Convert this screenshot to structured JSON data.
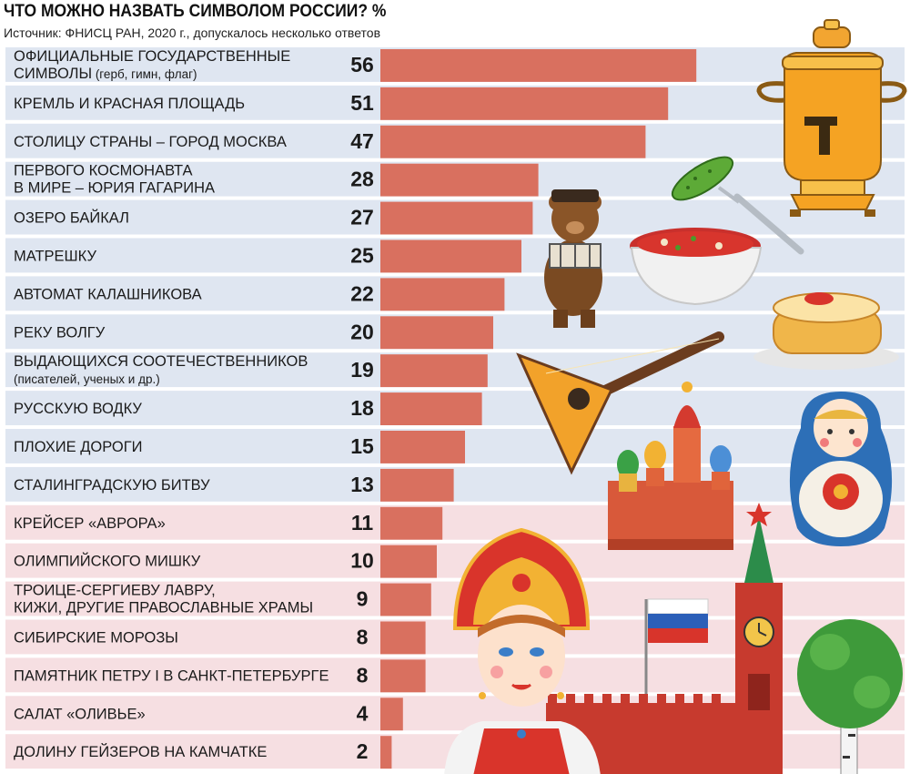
{
  "title": "ЧТО МОЖНО НАЗВАТЬ СИМВОЛОМ РОССИИ? %",
  "subtitle": "Источник: ФНИСЦ РАН, 2020 г., допускалось несколько ответов",
  "chart_data": {
    "type": "bar",
    "orientation": "horizontal",
    "title": "ЧТО МОЖНО НАЗВАТЬ СИМВОЛОМ РОССИИ? %",
    "subtitle": "Источник: ФНИСЦ РАН, 2020 г., допускалось несколько ответов",
    "xlim": [
      0,
      100
    ],
    "grid": false,
    "legend": "none",
    "bar_color": "#d9705f",
    "band_colors": [
      "#dfe6f1",
      "#f6dfe2"
    ],
    "categories": [
      {
        "lines": [
          {
            "text": "ОФИЦИАЛЬНЫЕ ГОСУДАРСТВЕННЫЕ"
          },
          {
            "text": "СИМВОЛЫ",
            "small": " (герб, гимн, флаг)"
          }
        ]
      },
      {
        "lines": [
          {
            "text": "КРЕМЛЬ И КРАСНАЯ ПЛОЩАДЬ"
          }
        ]
      },
      {
        "lines": [
          {
            "text": "СТОЛИЦУ СТРАНЫ – ГОРОД МОСКВА"
          }
        ]
      },
      {
        "lines": [
          {
            "text": "ПЕРВОГО КОСМОНАВТА"
          },
          {
            "text": "В МИРЕ – ЮРИЯ ГАГАРИНА"
          }
        ]
      },
      {
        "lines": [
          {
            "text": "ОЗЕРО БАЙКАЛ"
          }
        ]
      },
      {
        "lines": [
          {
            "text": "МАТРЕШКУ"
          }
        ]
      },
      {
        "lines": [
          {
            "text": "АВТОМАТ КАЛАШНИКОВА"
          }
        ]
      },
      {
        "lines": [
          {
            "text": "РЕКУ ВОЛГУ"
          }
        ]
      },
      {
        "lines": [
          {
            "text": "ВЫДАЮЩИХСЯ СООТЕЧЕСТВЕННИКОВ"
          },
          {
            "text": "",
            "small": "(писателей, ученых и др.)"
          }
        ]
      },
      {
        "lines": [
          {
            "text": "РУССКУЮ ВОДКУ"
          }
        ]
      },
      {
        "lines": [
          {
            "text": "ПЛОХИЕ ДОРОГИ"
          }
        ]
      },
      {
        "lines": [
          {
            "text": "СТАЛИНГРАДСКУЮ БИТВУ"
          }
        ]
      },
      {
        "lines": [
          {
            "text": "КРЕЙСЕР «АВРОРА»"
          }
        ]
      },
      {
        "lines": [
          {
            "text": "ОЛИМПИЙСКОГО МИШКУ"
          }
        ]
      },
      {
        "lines": [
          {
            "text": "ТРОИЦЕ-СЕРГИЕВУ ЛАВРУ,"
          },
          {
            "text": "КИЖИ, ДРУГИЕ ПРАВОСЛАВНЫЕ ХРАМЫ"
          }
        ]
      },
      {
        "lines": [
          {
            "text": "СИБИРСКИЕ МОРОЗЫ"
          }
        ]
      },
      {
        "lines": [
          {
            "text": "ПАМЯТНИК ПЕТРУ I В САНКТ-ПЕТЕРБУРГЕ"
          }
        ]
      },
      {
        "lines": [
          {
            "text": "САЛАТ «ОЛИВЬЕ»"
          }
        ]
      },
      {
        "lines": [
          {
            "text": "ДОЛИНУ ГЕЙЗЕРОВ НА КАМЧАТКЕ"
          }
        ]
      }
    ],
    "values": [
      56,
      51,
      47,
      28,
      27,
      25,
      22,
      20,
      19,
      18,
      15,
      13,
      11,
      10,
      9,
      8,
      8,
      4,
      2
    ]
  },
  "illustrations": [
    "samovar-icon",
    "pickle-fork-icon",
    "bear-accordion-icon",
    "borscht-bowl-icon",
    "pancakes-caviar-icon",
    "balalaika-icon",
    "st-basils-cathedral-icon",
    "matryoshka-icon",
    "kokoshnik-girl-icon",
    "russian-flag-icon",
    "kremlin-tower-icon",
    "birch-tree-icon"
  ]
}
